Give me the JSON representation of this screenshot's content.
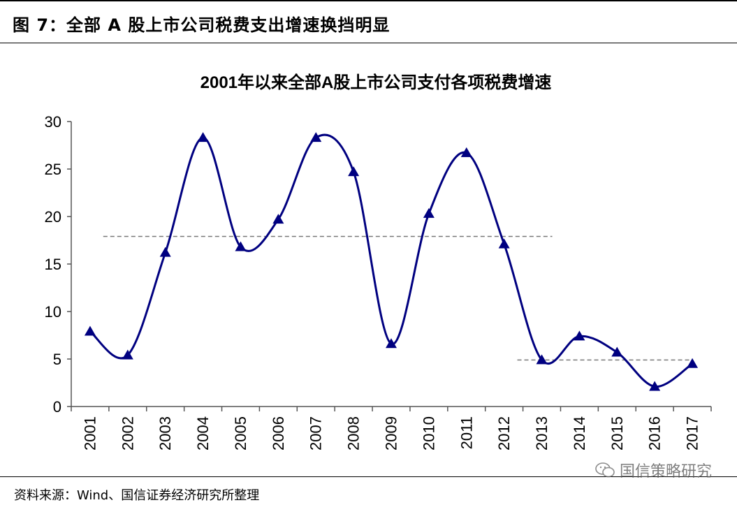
{
  "figure": {
    "label": "图 7：全部 A 股上市公司税费支出增速换挡明显",
    "source": "资料来源：Wind、国信证券经济研究所整理",
    "watermark": "国信策略研究",
    "watermark_icon": "wechat-icon"
  },
  "chart_data": {
    "type": "line",
    "title": "2001年以来全部A股上市公司支付各项税费增速",
    "xlabel": "",
    "ylabel": "",
    "categories": [
      "2001",
      "2002",
      "2003",
      "2004",
      "2005",
      "2006",
      "2007",
      "2008",
      "2009",
      "2010",
      "2011",
      "2012",
      "2013",
      "2014",
      "2015",
      "2016",
      "2017"
    ],
    "series": [
      {
        "values": [
          7.9,
          5.4,
          16.2,
          28.3,
          16.8,
          19.7,
          28.3,
          24.7,
          6.6,
          20.3,
          26.7,
          17.1,
          4.9,
          7.4,
          5.7,
          2.1,
          4.5
        ],
        "color": "#000080",
        "marker": "triangle"
      }
    ],
    "reference_lines": [
      {
        "value": 17.9,
        "from": "2002",
        "to": "2013"
      },
      {
        "value": 4.9,
        "from": "2013",
        "to": "2017"
      }
    ],
    "ylim": [
      0,
      30
    ],
    "yticks": [
      0,
      5,
      10,
      15,
      20,
      25,
      30
    ],
    "grid": false,
    "legend": "none"
  }
}
